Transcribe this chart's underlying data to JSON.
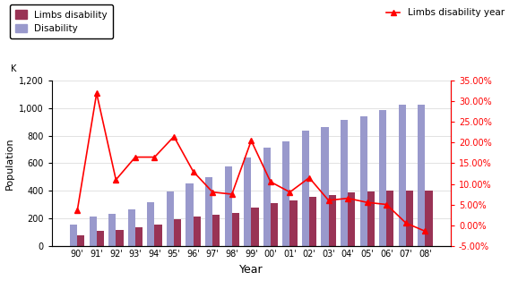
{
  "years": [
    "90'",
    "91'",
    "92'",
    "93'",
    "94'",
    "95'",
    "96'",
    "97'",
    "98'",
    "99'",
    "00'",
    "01'",
    "02'",
    "03'",
    "04'",
    "05'",
    "06'",
    "07'",
    "08'"
  ],
  "disability": [
    155,
    210,
    230,
    265,
    315,
    395,
    455,
    500,
    575,
    645,
    715,
    760,
    840,
    865,
    915,
    940,
    988,
    1025,
    1030
  ],
  "limbs_disability": [
    75,
    105,
    115,
    135,
    155,
    190,
    210,
    225,
    240,
    280,
    310,
    330,
    355,
    370,
    385,
    395,
    400,
    400,
    400
  ],
  "limbs_disability_year_pct": [
    3.5,
    32.0,
    11.0,
    16.5,
    16.5,
    21.5,
    13.0,
    8.0,
    7.5,
    20.5,
    10.5,
    8.0,
    11.5,
    6.0,
    6.5,
    5.5,
    5.0,
    0.5,
    -1.5
  ],
  "bar_color_disability": "#9999cc",
  "bar_color_limbs": "#993355",
  "line_color": "#ff0000",
  "ylabel_left": "Population",
  "xlabel": "Year",
  "ylim_left": [
    0,
    1200
  ],
  "ylim_right": [
    -5.0,
    35.0
  ],
  "yticks_left": [
    0,
    200,
    400,
    600,
    800,
    1000,
    1200
  ],
  "ytick_labels_left": [
    "0",
    "200",
    "400",
    "600",
    "800",
    "1,000",
    "1,200"
  ],
  "yticks_right": [
    -5.0,
    0.0,
    5.0,
    10.0,
    15.0,
    20.0,
    25.0,
    30.0,
    35.0
  ],
  "ytick_labels_right": [
    "-5.00%",
    "0.00%",
    "5.00%",
    "10.00%",
    "15.00%",
    "20.00%",
    "25.00%",
    "30.00%",
    "35.00%"
  ],
  "k_label": "K",
  "legend1_label": "Limbs disability",
  "legend2_label": "Disability",
  "legend3_label": "Limbs disability year",
  "bar_width": 0.38
}
